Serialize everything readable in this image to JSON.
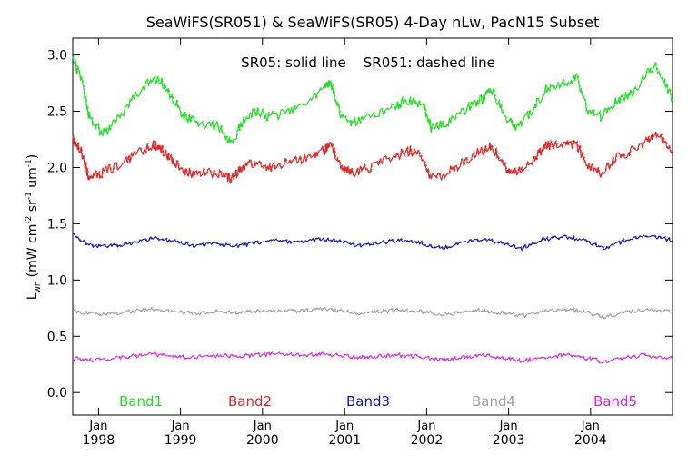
{
  "chart_data": {
    "type": "line",
    "title": "SeaWiFS(SR051) & SeaWiFS(SR05) 4-Day nLw, PacN15 Subset",
    "annotation": "SR05: solid line    SR051: dashed line",
    "ylabel": {
      "prefix": "L",
      "sub": "wn",
      "units": "(mW cm",
      "e1": "-2",
      "mid1": " sr",
      "e2": "-1",
      "mid2": " um",
      "e3": "-1",
      "close": ")"
    },
    "ylim": [
      -0.2,
      3.15
    ],
    "yticks": [
      "0.0",
      "0.5",
      "1.0",
      "1.5",
      "2.0",
      "2.5",
      "3.0"
    ],
    "xlim": [
      "1997-09-08",
      "2004-12-31"
    ],
    "xticks": [
      {
        "month": "Jan",
        "year": "1998",
        "date": "1998-01-01"
      },
      {
        "month": "Jan",
        "year": "1999",
        "date": "1999-01-01"
      },
      {
        "month": "Jan",
        "year": "2000",
        "date": "2000-01-01"
      },
      {
        "month": "Jan",
        "year": "2001",
        "date": "2001-01-01"
      },
      {
        "month": "Jan",
        "year": "2002",
        "date": "2002-01-01"
      },
      {
        "month": "Jan",
        "year": "2003",
        "date": "2003-01-01"
      },
      {
        "month": "Jan",
        "year": "2004",
        "date": "2004-01-01"
      }
    ],
    "grid": false,
    "series": [
      {
        "name": "Band1",
        "color": "#22dd22",
        "x": [
          "1997-09-08",
          "1997-10-15",
          "1997-11-20",
          "1998-01-15",
          "1998-03-15",
          "1998-06-01",
          "1998-09-01",
          "1998-10-15",
          "1998-12-01",
          "1999-01-20",
          "1999-04-01",
          "1999-07-01",
          "1999-08-15",
          "1999-10-01",
          "1999-12-01",
          "2000-02-01",
          "2000-05-01",
          "2000-08-01",
          "2000-10-01",
          "2000-11-01",
          "2000-12-15",
          "2001-02-01",
          "2001-05-01",
          "2001-08-15",
          "2001-10-15",
          "2001-12-15",
          "2002-01-20",
          "2002-04-01",
          "2002-06-15",
          "2002-09-01",
          "2002-10-15",
          "2002-12-15",
          "2003-02-01",
          "2003-04-15",
          "2003-06-15",
          "2003-09-01",
          "2003-11-01",
          "2003-12-20",
          "2004-02-15",
          "2004-05-01",
          "2004-07-01",
          "2004-09-15",
          "2004-10-20",
          "2004-12-31"
        ],
        "values": [
          2.95,
          2.8,
          2.45,
          2.3,
          2.4,
          2.6,
          2.8,
          2.75,
          2.6,
          2.45,
          2.4,
          2.35,
          2.2,
          2.4,
          2.5,
          2.45,
          2.5,
          2.6,
          2.7,
          2.75,
          2.45,
          2.4,
          2.45,
          2.55,
          2.6,
          2.55,
          2.35,
          2.4,
          2.5,
          2.6,
          2.7,
          2.45,
          2.35,
          2.5,
          2.7,
          2.75,
          2.8,
          2.5,
          2.45,
          2.6,
          2.65,
          2.85,
          2.9,
          2.6
        ]
      },
      {
        "name": "Band2",
        "color": "#dd2222",
        "x": [
          "1997-09-08",
          "1997-10-15",
          "1997-11-20",
          "1998-01-15",
          "1998-03-15",
          "1998-06-01",
          "1998-09-01",
          "1998-10-15",
          "1998-12-01",
          "1999-01-20",
          "1999-04-01",
          "1999-07-01",
          "1999-08-15",
          "1999-10-01",
          "1999-12-01",
          "2000-02-01",
          "2000-05-01",
          "2000-08-01",
          "2000-10-01",
          "2000-11-01",
          "2000-12-15",
          "2001-02-01",
          "2001-05-01",
          "2001-08-15",
          "2001-10-15",
          "2001-12-15",
          "2002-01-20",
          "2002-04-01",
          "2002-06-15",
          "2002-09-01",
          "2002-10-15",
          "2002-12-15",
          "2003-02-01",
          "2003-04-15",
          "2003-06-15",
          "2003-09-01",
          "2003-11-01",
          "2003-12-20",
          "2004-02-15",
          "2004-05-01",
          "2004-07-01",
          "2004-09-15",
          "2004-10-20",
          "2004-12-31"
        ],
        "values": [
          2.25,
          2.15,
          1.9,
          1.95,
          2.0,
          2.1,
          2.2,
          2.15,
          2.05,
          1.95,
          1.95,
          1.95,
          1.9,
          2.0,
          2.05,
          2.0,
          2.05,
          2.1,
          2.15,
          2.2,
          2.0,
          1.95,
          2.0,
          2.1,
          2.15,
          2.1,
          1.9,
          1.95,
          2.05,
          2.15,
          2.2,
          2.0,
          1.95,
          2.05,
          2.2,
          2.2,
          2.2,
          2.0,
          1.95,
          2.1,
          2.15,
          2.25,
          2.3,
          2.15
        ]
      },
      {
        "name": "Band3",
        "color": "#1111bb",
        "x": [
          "1997-09-08",
          "1997-12-01",
          "1998-03-01",
          "1998-06-01",
          "1998-09-01",
          "1998-12-01",
          "1999-03-01",
          "1999-06-01",
          "1999-09-01",
          "1999-12-01",
          "2000-03-01",
          "2000-06-01",
          "2000-09-01",
          "2000-12-01",
          "2001-03-01",
          "2001-06-01",
          "2001-09-01",
          "2001-12-01",
          "2002-03-01",
          "2002-06-01",
          "2002-09-01",
          "2002-12-01",
          "2003-03-01",
          "2003-06-01",
          "2003-09-01",
          "2003-12-01",
          "2004-03-01",
          "2004-06-01",
          "2004-09-01",
          "2004-12-31"
        ],
        "values": [
          1.4,
          1.3,
          1.3,
          1.33,
          1.37,
          1.35,
          1.3,
          1.32,
          1.3,
          1.33,
          1.35,
          1.33,
          1.36,
          1.35,
          1.3,
          1.33,
          1.35,
          1.33,
          1.28,
          1.33,
          1.36,
          1.33,
          1.28,
          1.36,
          1.38,
          1.36,
          1.28,
          1.35,
          1.4,
          1.35
        ]
      },
      {
        "name": "Band4",
        "color": "#a0a0a0",
        "x": [
          "1997-09-08",
          "1997-12-01",
          "1998-03-01",
          "1998-06-01",
          "1998-09-01",
          "1998-12-01",
          "1999-03-01",
          "1999-06-01",
          "1999-09-01",
          "1999-12-01",
          "2000-03-01",
          "2000-06-01",
          "2000-09-01",
          "2000-12-01",
          "2001-03-01",
          "2001-06-01",
          "2001-09-01",
          "2001-12-01",
          "2002-03-01",
          "2002-06-01",
          "2002-09-01",
          "2002-12-01",
          "2003-03-01",
          "2003-06-01",
          "2003-09-01",
          "2003-12-01",
          "2004-03-01",
          "2004-06-01",
          "2004-09-01",
          "2004-12-31"
        ],
        "values": [
          0.72,
          0.7,
          0.7,
          0.72,
          0.74,
          0.72,
          0.7,
          0.72,
          0.71,
          0.72,
          0.73,
          0.72,
          0.74,
          0.73,
          0.7,
          0.72,
          0.73,
          0.72,
          0.69,
          0.71,
          0.73,
          0.71,
          0.68,
          0.72,
          0.74,
          0.72,
          0.67,
          0.71,
          0.74,
          0.72
        ]
      },
      {
        "name": "Band5",
        "color": "#dd22dd",
        "x": [
          "1997-09-08",
          "1997-12-01",
          "1998-03-01",
          "1998-06-01",
          "1998-09-01",
          "1998-12-01",
          "1999-03-01",
          "1999-06-01",
          "1999-09-01",
          "1999-12-01",
          "2000-03-01",
          "2000-06-01",
          "2000-09-01",
          "2000-12-01",
          "2001-03-01",
          "2001-06-01",
          "2001-09-01",
          "2001-12-01",
          "2002-03-01",
          "2002-06-01",
          "2002-09-01",
          "2002-12-01",
          "2003-03-01",
          "2003-06-01",
          "2003-09-01",
          "2003-12-01",
          "2004-03-01",
          "2004-06-01",
          "2004-09-01",
          "2004-12-31"
        ],
        "values": [
          0.3,
          0.29,
          0.3,
          0.32,
          0.34,
          0.32,
          0.31,
          0.33,
          0.32,
          0.33,
          0.34,
          0.33,
          0.34,
          0.33,
          0.31,
          0.32,
          0.33,
          0.32,
          0.29,
          0.31,
          0.33,
          0.31,
          0.28,
          0.31,
          0.33,
          0.31,
          0.27,
          0.31,
          0.33,
          0.3
        ]
      }
    ]
  }
}
